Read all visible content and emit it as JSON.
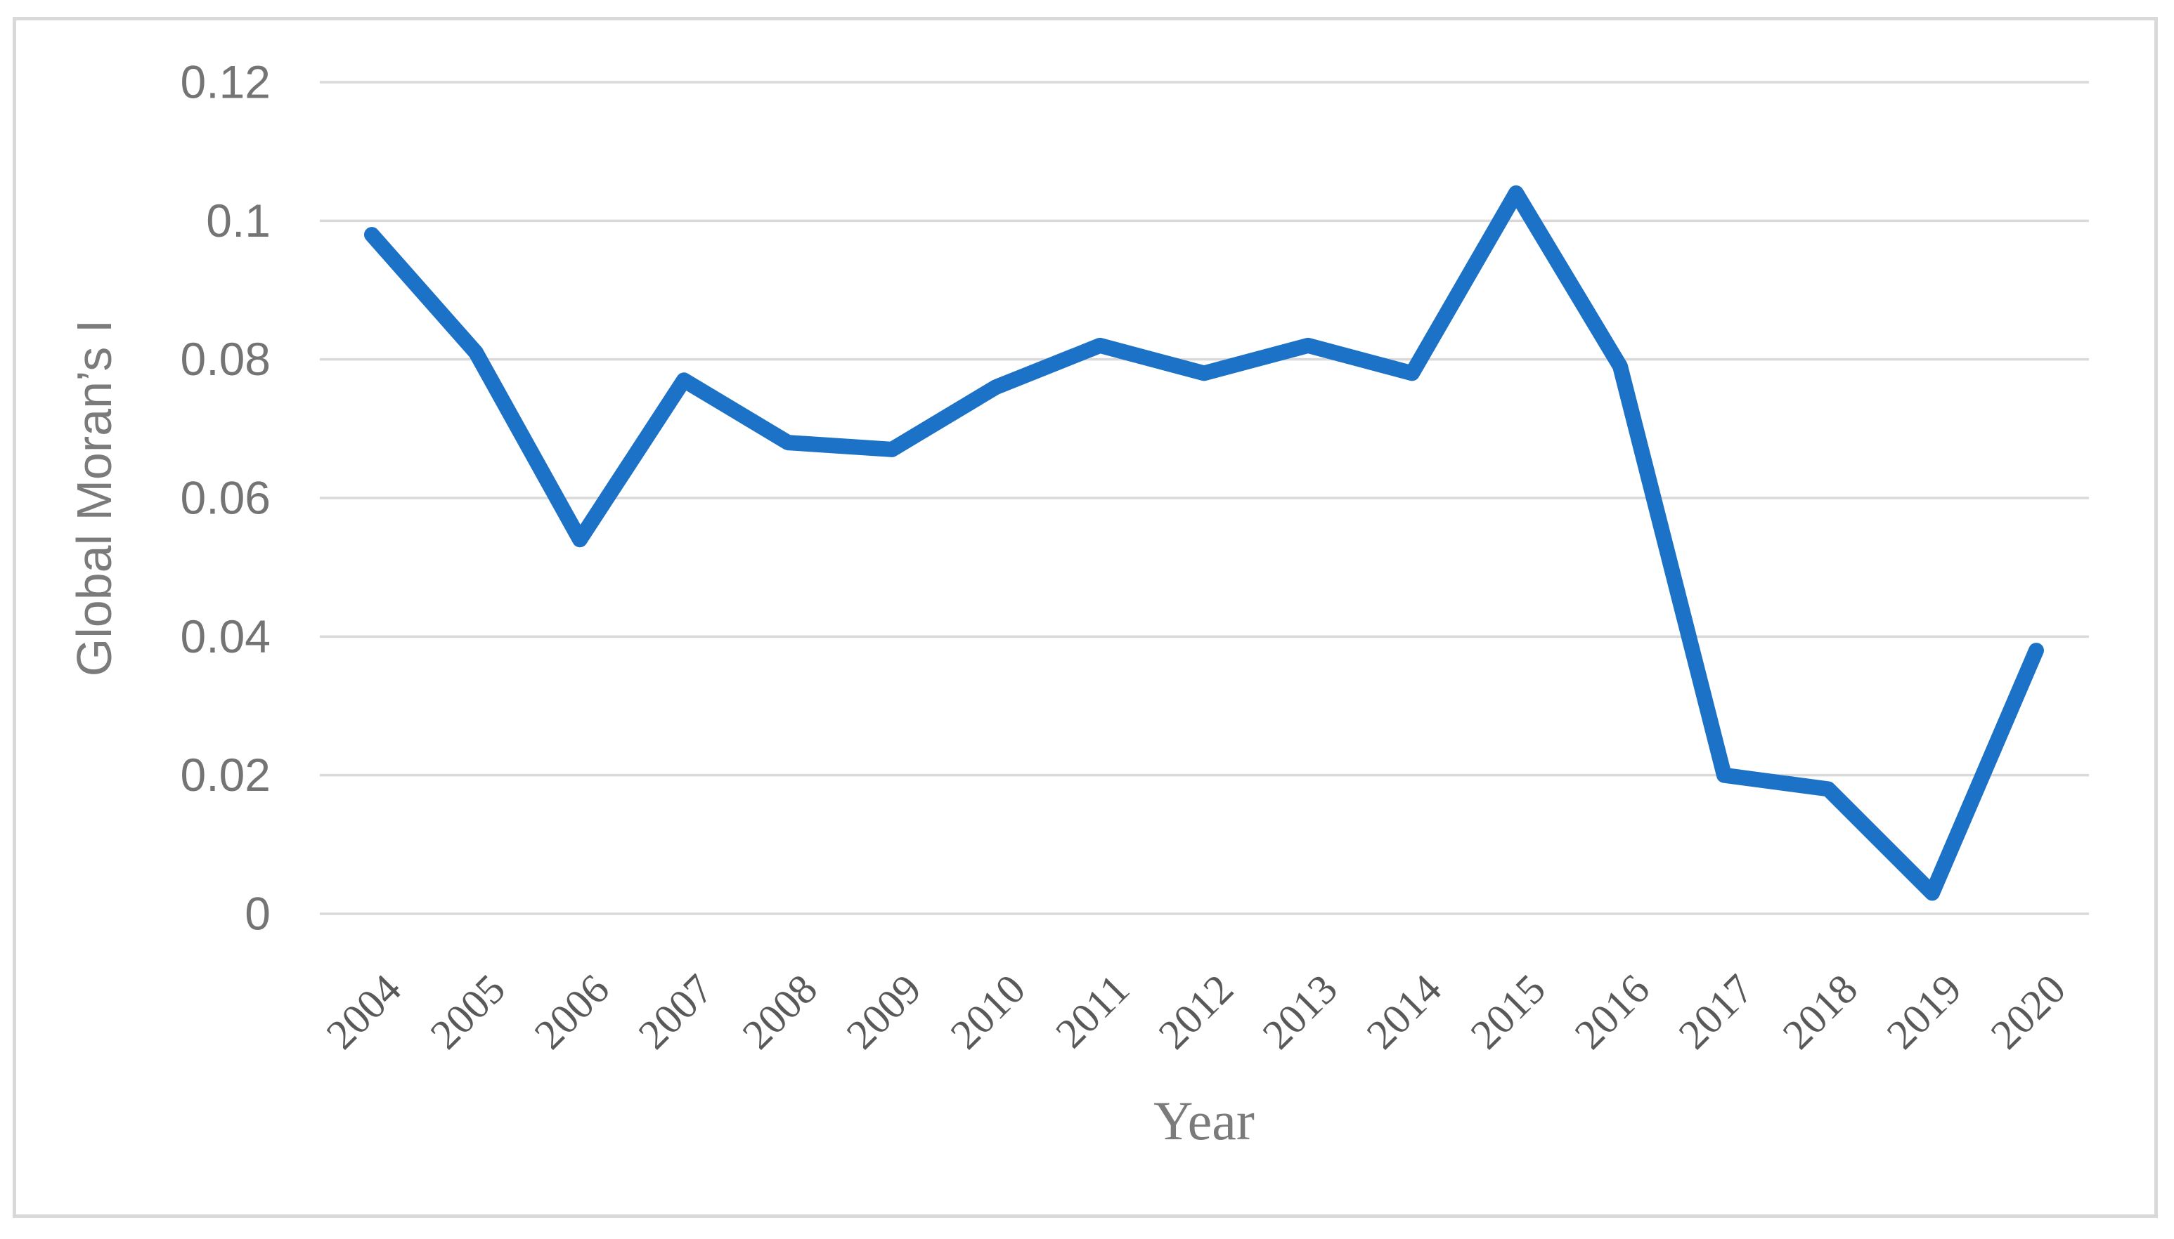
{
  "chart_data": {
    "type": "line",
    "title": "",
    "x": [
      "2004",
      "2005",
      "2006",
      "2007",
      "2008",
      "2009",
      "2010",
      "2011",
      "2012",
      "2013",
      "2014",
      "2015",
      "2016",
      "2017",
      "2018",
      "2019",
      "2020"
    ],
    "series": [
      {
        "name": "Global Moran's I",
        "values": [
          0.098,
          0.081,
          0.054,
          0.077,
          0.068,
          0.067,
          0.076,
          0.082,
          0.078,
          0.082,
          0.078,
          0.104,
          0.079,
          0.02,
          0.018,
          0.003,
          0.038
        ]
      }
    ],
    "xlabel": "Year",
    "ylabel": "Global Moran’s I",
    "ylim": [
      0,
      0.12
    ],
    "ytick_labels": [
      "0.12",
      "0.1",
      "0.08",
      "0.06",
      "0.04",
      "0.02",
      "0"
    ],
    "grid": "horizontal-only",
    "legend": "none",
    "x_labels_rotation_deg": -45,
    "colors": {
      "line": "#1C72C6",
      "gridline": "#D9D9D9",
      "chart_border": "#D9D9D9",
      "ytick_text": "#747474",
      "xtick_text": "#595959",
      "axis_title_text": "#7B7B7B",
      "background": "#FFFFFF"
    }
  }
}
